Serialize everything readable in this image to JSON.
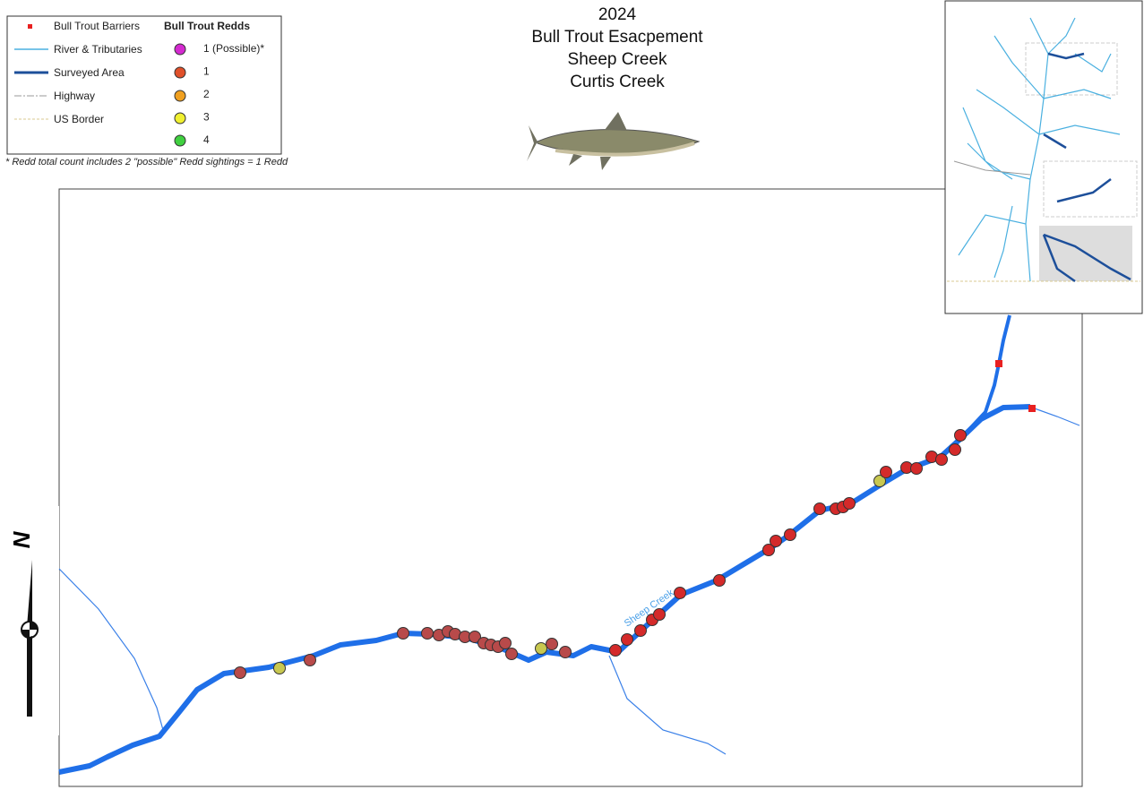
{
  "legend": {
    "left": [
      "Bull Trout Barriers",
      "River & Tributaries",
      "Surveyed Area",
      "Highway",
      "US Border"
    ],
    "redds_title": "Bull Trout Redds",
    "redds": [
      "1 (Possible)*",
      "1",
      "2",
      "3",
      "4"
    ]
  },
  "footnote": "* Redd total count includes 2 \"possible\" Redd sightings = 1 Redd",
  "title": [
    "2024",
    "Bull Trout Esacpement",
    "Sheep Creek",
    "Curtis Creek"
  ],
  "map_label": "Sheep Creek",
  "north": "N"
}
